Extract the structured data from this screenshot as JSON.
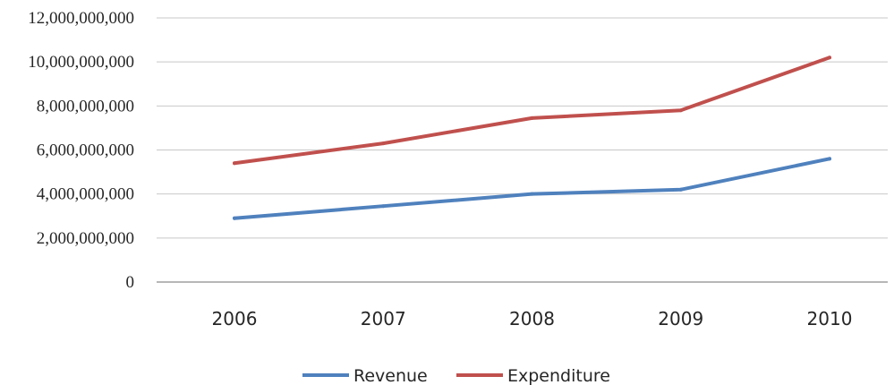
{
  "chart_data": {
    "type": "line",
    "title": "",
    "xlabel": "",
    "ylabel": "",
    "categories": [
      "2006",
      "2007",
      "2008",
      "2009",
      "2010"
    ],
    "ylim": [
      0,
      12000000000
    ],
    "yticks": [
      0,
      2000000000,
      4000000000,
      6000000000,
      8000000000,
      10000000000,
      12000000000
    ],
    "ytick_labels": [
      "0",
      "2,000,000,000",
      "4,000,000,000",
      "6,000,000,000",
      "8,000,000,000",
      "10,000,000,000",
      "12,000,000,000"
    ],
    "grid": true,
    "legend_position": "bottom",
    "series": [
      {
        "name": "Revenue",
        "color": "#4f81bd",
        "values": [
          2900000000,
          3450000000,
          4000000000,
          4200000000,
          5600000000
        ]
      },
      {
        "name": "Expenditure",
        "color": "#c0504d",
        "values": [
          5400000000,
          6300000000,
          7450000000,
          7800000000,
          10200000000
        ]
      }
    ]
  }
}
